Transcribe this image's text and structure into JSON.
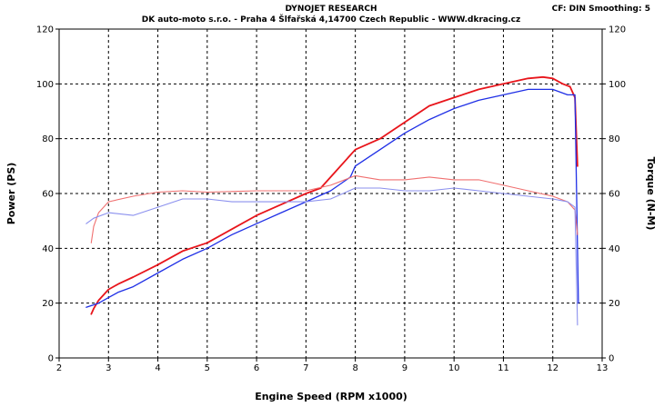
{
  "header": {
    "title": "DYNOJET RESEARCH",
    "subtitle": "DK auto-moto s.r.o. - Praha 4 Šlfařská 4,14700 Czech Republic  - WWW.dkracing.cz",
    "settings": "CF: DIN  Smoothing: 5"
  },
  "chart_data": {
    "type": "line",
    "xlabel": "Engine Speed (RPM x1000)",
    "ylabel_left": "Power (PS)",
    "ylabel_right": "Torque (N-M)",
    "xlim": [
      2,
      13
    ],
    "ylim_left": [
      0,
      120
    ],
    "ylim_right": [
      0,
      120
    ],
    "x_ticks": [
      "2",
      "3",
      "4",
      "5",
      "6",
      "7",
      "8",
      "9",
      "10",
      "11",
      "12",
      "13"
    ],
    "y_ticks_left": [
      "0",
      "20",
      "40",
      "60",
      "80",
      "100",
      "120"
    ],
    "y_ticks_right": [
      "0",
      "20",
      "40",
      "60",
      "80",
      "100",
      "120"
    ],
    "grid": true,
    "colors": {
      "run_red": "#e8151b",
      "run_blue": "#1f2fe6",
      "torque_red": "#f07070",
      "torque_blue": "#8b90ee"
    },
    "series": [
      {
        "color": "run_red",
        "axis": "left",
        "kind": "power",
        "x": [
          2.65,
          2.7,
          2.8,
          3.0,
          3.2,
          3.5,
          4.0,
          4.5,
          5.0,
          5.5,
          6.0,
          6.5,
          7.0,
          7.3,
          7.6,
          8.0,
          8.5,
          9.0,
          9.5,
          10.0,
          10.5,
          11.0,
          11.5,
          11.8,
          12.0,
          12.2,
          12.35,
          12.45,
          12.5
        ],
        "y": [
          16,
          18,
          21,
          25,
          27,
          29.5,
          34,
          39,
          42,
          47,
          52,
          56,
          60,
          62,
          68,
          76,
          80,
          86,
          92,
          95,
          98,
          100,
          102,
          102.5,
          102,
          100,
          99,
          95,
          70
        ]
      },
      {
        "color": "run_blue",
        "axis": "left",
        "kind": "power",
        "x": [
          2.55,
          2.8,
          3.0,
          3.2,
          3.5,
          4.0,
          4.5,
          5.0,
          5.5,
          6.0,
          6.5,
          7.0,
          7.5,
          7.9,
          8.0,
          8.5,
          9.0,
          9.5,
          10.0,
          10.5,
          11.0,
          11.5,
          12.0,
          12.3,
          12.45,
          12.5,
          12.52
        ],
        "y": [
          18.5,
          20,
          22,
          24,
          26,
          31,
          36,
          40,
          45,
          49,
          53,
          57,
          61,
          66,
          70,
          76,
          82,
          87,
          91,
          94,
          96,
          98,
          98,
          96,
          96,
          40,
          20
        ]
      },
      {
        "color": "torque_red",
        "axis": "right",
        "kind": "torque",
        "x": [
          2.65,
          2.7,
          2.8,
          3.0,
          3.5,
          4.0,
          4.5,
          5.0,
          6.0,
          7.0,
          7.5,
          8.0,
          8.5,
          9.0,
          9.5,
          10.0,
          10.5,
          11.0,
          11.5,
          12.0,
          12.3,
          12.45,
          12.5
        ],
        "y": [
          42,
          48,
          53,
          57,
          59,
          60.5,
          61,
          60.5,
          61,
          61,
          63,
          66.5,
          65,
          65,
          66,
          65,
          65,
          63,
          61,
          59,
          57,
          54,
          45
        ]
      },
      {
        "color": "torque_blue",
        "axis": "right",
        "kind": "torque",
        "x": [
          2.55,
          2.7,
          3.0,
          3.5,
          4.0,
          4.5,
          5.0,
          5.5,
          6.0,
          6.5,
          7.0,
          7.5,
          8.0,
          8.5,
          9.0,
          9.5,
          10.0,
          10.5,
          11.0,
          11.5,
          12.0,
          12.3,
          12.45,
          12.5
        ],
        "y": [
          49,
          51,
          53,
          52,
          55,
          58,
          58,
          57,
          57,
          57,
          57,
          58,
          62,
          62,
          61,
          61,
          62,
          61,
          60,
          59,
          58,
          57,
          55,
          12
        ]
      }
    ]
  }
}
